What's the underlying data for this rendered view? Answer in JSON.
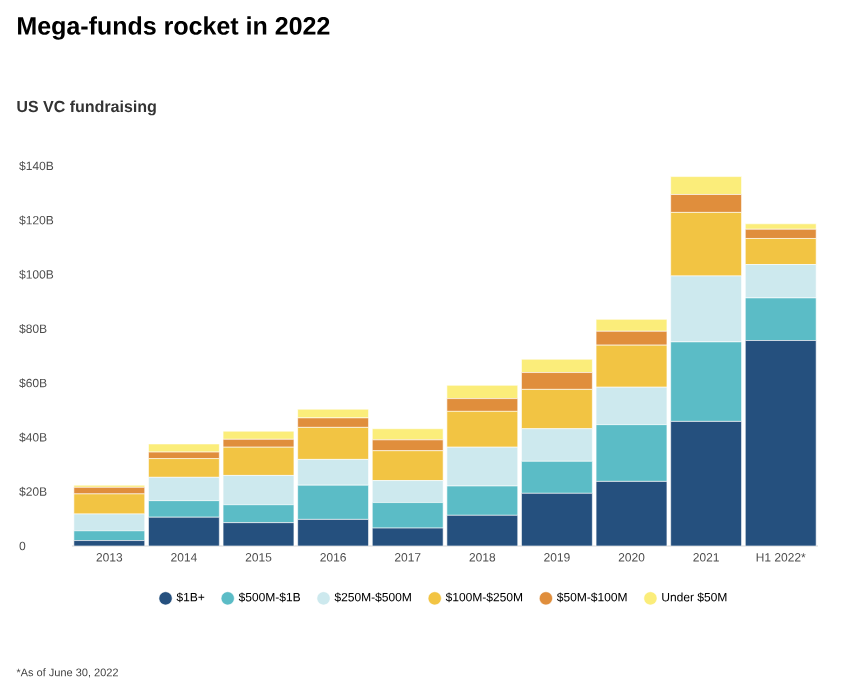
{
  "chart_data": {
    "type": "bar",
    "stacked": true,
    "title": "Mega-funds rocket in 2022",
    "subtitle": "US VC fundraising",
    "categories": [
      "2013",
      "2014",
      "2015",
      "2016",
      "2017",
      "2018",
      "2019",
      "2020",
      "2021",
      "H1 2022*"
    ],
    "series": [
      {
        "name": "$1B+",
        "color": "#25507e",
        "values": [
          2,
          10.6,
          8.6,
          9.8,
          6.6,
          11.3,
          19.4,
          23.8,
          45.9,
          75.7
        ]
      },
      {
        "name": "$500M-$1B",
        "color": "#5bbcc6",
        "values": [
          3.6,
          6.1,
          6.6,
          12.6,
          9.4,
          10.8,
          11.8,
          20.9,
          29.3,
          15.7
        ]
      },
      {
        "name": "$250M-$500M",
        "color": "#cde9ee",
        "values": [
          6.2,
          8.6,
          10.8,
          9.5,
          8.1,
          14.3,
          12,
          13.8,
          24.3,
          12.3
        ]
      },
      {
        "name": "$100M-$250M",
        "color": "#f2c443",
        "values": [
          7.4,
          6.9,
          10.4,
          11.8,
          11,
          13.2,
          14.5,
          15.5,
          23.4,
          9.6
        ]
      },
      {
        "name": "$50M-$100M",
        "color": "#e08e3c",
        "values": [
          2.4,
          2.4,
          2.9,
          3.5,
          4,
          4.7,
          6.2,
          5.1,
          6.6,
          3.4
        ]
      },
      {
        "name": "Under $50M",
        "color": "#fbed7a",
        "values": [
          0.8,
          3,
          3,
          3.2,
          4.1,
          4.9,
          4.9,
          4.4,
          6.6,
          2
        ]
      }
    ],
    "ylim": [
      0,
      140
    ],
    "yticks": [
      0,
      {
        "value": 20,
        "label": "$20B"
      },
      {
        "value": 40,
        "label": "$40B"
      },
      {
        "value": 60,
        "label": "$60B"
      },
      {
        "value": 80,
        "label": "$80B"
      },
      {
        "value": 100,
        "label": "$100B"
      },
      {
        "value": 120,
        "label": "$120B"
      },
      {
        "value": 140,
        "label": "$140B"
      }
    ],
    "grid": false,
    "legend": "bottom",
    "annotations": [
      "*As of June 30, 2022"
    ]
  }
}
